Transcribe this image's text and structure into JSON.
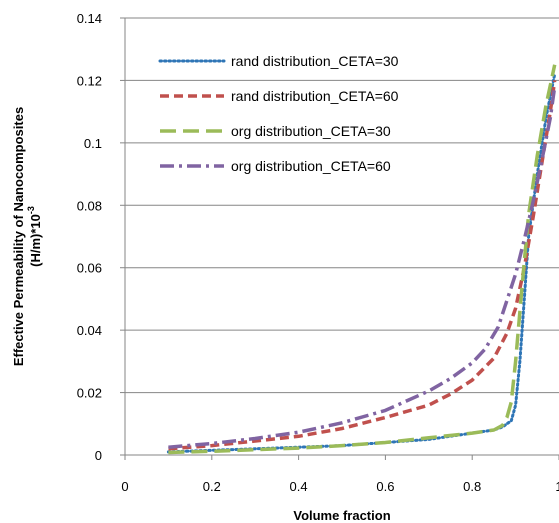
{
  "chart_data": {
    "type": "line",
    "title": "",
    "xlabel": "Volume fraction",
    "ylabel_line1": "Effective Permeability of Nanocomposites",
    "ylabel_line2": "(H/m)*10",
    "ylabel_exponent": "-3",
    "xlim": [
      0,
      1
    ],
    "ylim": [
      0,
      0.14
    ],
    "x_ticks": [
      0,
      0.2,
      0.4,
      0.6,
      0.8,
      1
    ],
    "x_tick_labels": [
      "0",
      "0.2",
      "0.4",
      "0.6",
      "0.8",
      "1"
    ],
    "y_ticks": [
      0,
      0.02,
      0.04,
      0.06,
      0.08,
      0.1,
      0.12,
      0.14
    ],
    "y_tick_labels": [
      "0",
      "0.02",
      "0.04",
      "0.06",
      "0.08",
      "0.1",
      "0.12",
      "0.14"
    ],
    "grid": "horizontal",
    "legend_position": "top-left",
    "series": [
      {
        "name": "rand distribution_CETA=30",
        "color": "#2E75B6",
        "style": "dotted",
        "x": [
          0.1,
          0.2,
          0.3,
          0.4,
          0.5,
          0.6,
          0.7,
          0.8,
          0.85,
          0.87,
          0.89,
          0.9,
          0.91,
          0.92,
          0.93,
          0.95,
          0.97,
          0.99
        ],
        "y": [
          0.001,
          0.0015,
          0.002,
          0.0025,
          0.003,
          0.004,
          0.005,
          0.007,
          0.008,
          0.009,
          0.011,
          0.016,
          0.03,
          0.05,
          0.07,
          0.09,
          0.108,
          0.122
        ]
      },
      {
        "name": "rand distribution_CETA=60",
        "color": "#C0504D",
        "style": "dashed",
        "x": [
          0.1,
          0.2,
          0.3,
          0.4,
          0.5,
          0.6,
          0.7,
          0.75,
          0.8,
          0.85,
          0.88,
          0.9,
          0.92,
          0.94,
          0.96,
          0.98,
          0.99
        ],
        "y": [
          0.002,
          0.003,
          0.0045,
          0.006,
          0.0085,
          0.012,
          0.016,
          0.0195,
          0.024,
          0.031,
          0.039,
          0.047,
          0.06,
          0.076,
          0.093,
          0.11,
          0.12
        ]
      },
      {
        "name": "org distribution_CETA=30",
        "color": "#9BBB59",
        "style": "long-dash",
        "x": [
          0.1,
          0.2,
          0.3,
          0.4,
          0.5,
          0.6,
          0.7,
          0.8,
          0.85,
          0.87,
          0.88,
          0.89,
          0.9,
          0.91,
          0.92,
          0.93,
          0.95,
          0.97,
          0.99
        ],
        "y": [
          0.0008,
          0.0012,
          0.0017,
          0.0022,
          0.003,
          0.004,
          0.0055,
          0.007,
          0.008,
          0.0095,
          0.012,
          0.017,
          0.03,
          0.046,
          0.062,
          0.077,
          0.096,
          0.112,
          0.125
        ]
      },
      {
        "name": "org distribution_CETA=60",
        "color": "#8064A2",
        "style": "dash-dot",
        "x": [
          0.1,
          0.2,
          0.3,
          0.4,
          0.5,
          0.6,
          0.7,
          0.75,
          0.8,
          0.83,
          0.86,
          0.88,
          0.9,
          0.92,
          0.94,
          0.96,
          0.98,
          0.99
        ],
        "y": [
          0.0025,
          0.0037,
          0.0053,
          0.0073,
          0.0103,
          0.0143,
          0.0205,
          0.0245,
          0.0295,
          0.034,
          0.041,
          0.0495,
          0.058,
          0.069,
          0.081,
          0.094,
          0.108,
          0.118
        ]
      }
    ]
  }
}
